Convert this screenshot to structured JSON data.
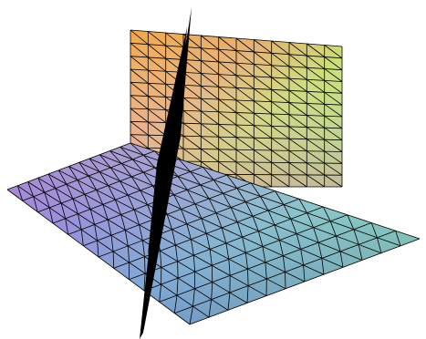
{
  "figure": {
    "kind": "3d-surface-plot",
    "description_free": true,
    "planes": [
      {
        "id": "vertical-plane",
        "colormap": "rainbow-gradient"
      },
      {
        "id": "horizontal-plane",
        "colormap": "rainbow-gradient"
      },
      {
        "id": "black-plane",
        "color": "#000000"
      }
    ],
    "mesh": {
      "u_divisions": 12,
      "v_divisions": 12,
      "line_color": "#000000"
    }
  }
}
